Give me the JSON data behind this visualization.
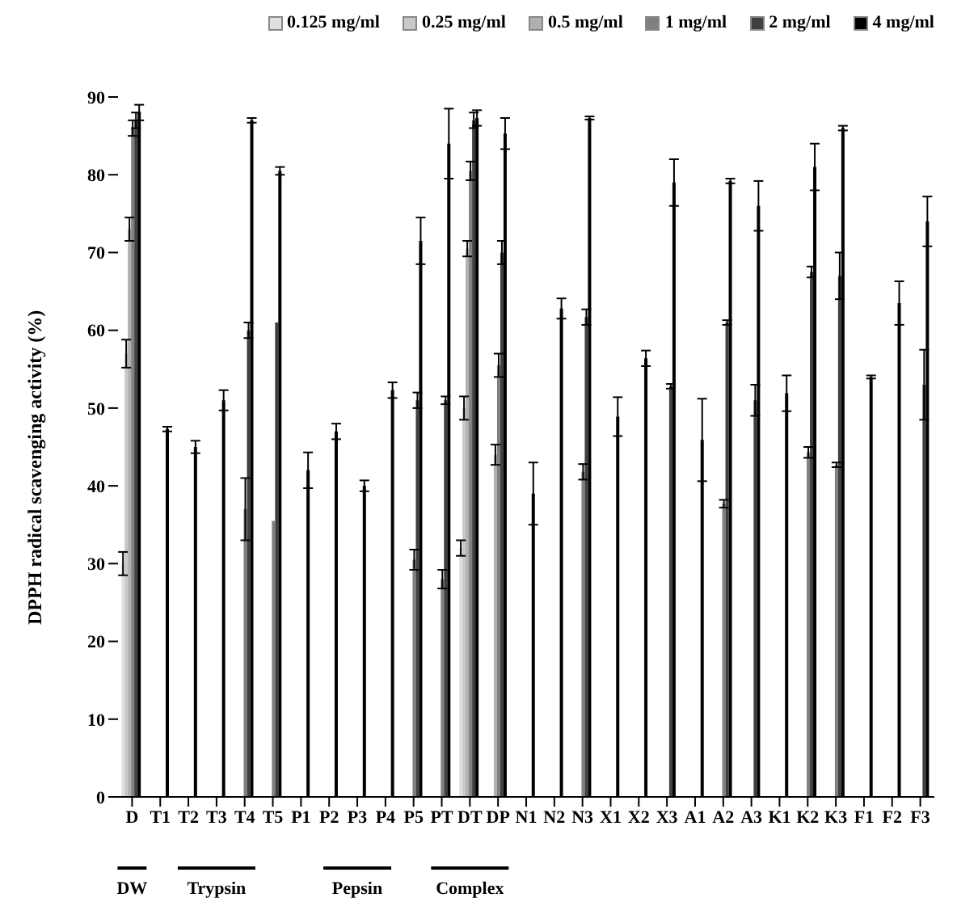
{
  "chart_data": {
    "type": "bar",
    "ylabel": "DPPH radical scavenging activity (%)",
    "categories": [
      "D",
      "T1",
      "T2",
      "T3",
      "T4",
      "T5",
      "P1",
      "P2",
      "P3",
      "P4",
      "P5",
      "PT",
      "DT",
      "DP",
      "N1",
      "N2",
      "N3",
      "X1",
      "X2",
      "X3",
      "A1",
      "A2",
      "A3",
      "K1",
      "K2",
      "K3",
      "F1",
      "F2",
      "F3"
    ],
    "series": [
      {
        "name": "0.125 mg/ml",
        "color": "#e0e0e0",
        "values": [
          30,
          null,
          null,
          null,
          null,
          null,
          null,
          null,
          null,
          null,
          null,
          null,
          32,
          null,
          null,
          null,
          null,
          null,
          null,
          null,
          null,
          null,
          null,
          null,
          null,
          null,
          null,
          null,
          null
        ],
        "errors": [
          1.5,
          null,
          null,
          null,
          null,
          null,
          null,
          null,
          null,
          null,
          null,
          null,
          1,
          null,
          null,
          null,
          null,
          null,
          null,
          null,
          null,
          null,
          null,
          null,
          null,
          null,
          null,
          null,
          null
        ]
      },
      {
        "name": "0.25 mg/ml",
        "color": "#c8c8c8",
        "values": [
          57,
          null,
          null,
          null,
          null,
          null,
          null,
          null,
          null,
          null,
          null,
          null,
          50,
          null,
          null,
          null,
          null,
          null,
          null,
          null,
          null,
          null,
          null,
          null,
          null,
          null,
          null,
          null,
          null
        ],
        "errors": [
          1.8,
          null,
          null,
          null,
          null,
          null,
          null,
          null,
          null,
          null,
          null,
          null,
          1.5,
          null,
          null,
          null,
          null,
          null,
          null,
          null,
          null,
          null,
          null,
          null,
          null,
          null,
          null,
          null,
          null
        ]
      },
      {
        "name": "0.5 mg/ml",
        "color": "#b0b0b0",
        "values": [
          73,
          null,
          null,
          null,
          null,
          null,
          null,
          null,
          null,
          null,
          null,
          null,
          70.5,
          44,
          null,
          null,
          null,
          null,
          null,
          null,
          null,
          null,
          null,
          null,
          null,
          null,
          null,
          null,
          null
        ],
        "errors": [
          1.5,
          null,
          null,
          null,
          null,
          null,
          null,
          null,
          null,
          null,
          null,
          null,
          1,
          1.3,
          null,
          null,
          null,
          null,
          null,
          null,
          null,
          null,
          null,
          null,
          null,
          null,
          null,
          null,
          null
        ]
      },
      {
        "name": "1 mg/ml",
        "color": "#808080",
        "values": [
          86,
          null,
          null,
          null,
          37,
          35.5,
          null,
          null,
          null,
          null,
          30.5,
          28,
          80.5,
          55.5,
          null,
          null,
          41.8,
          null,
          null,
          null,
          null,
          37.7,
          null,
          null,
          44.3,
          42.7,
          null,
          null,
          null
        ],
        "errors": [
          1,
          null,
          null,
          null,
          4,
          null,
          null,
          null,
          null,
          null,
          1.3,
          1.2,
          1.2,
          1.5,
          null,
          null,
          1,
          null,
          null,
          null,
          null,
          0.5,
          null,
          null,
          0.7,
          0.3,
          null,
          null,
          null
        ]
      },
      {
        "name": "2 mg/ml",
        "color": "#404040",
        "values": [
          87,
          null,
          null,
          null,
          60,
          61,
          null,
          null,
          null,
          null,
          51,
          51,
          87,
          70,
          null,
          null,
          61.7,
          null,
          null,
          52.8,
          null,
          61,
          51,
          null,
          67.5,
          67,
          null,
          null,
          53
        ],
        "errors": [
          1,
          null,
          null,
          null,
          1,
          null,
          null,
          null,
          null,
          null,
          1,
          0.5,
          1,
          1.5,
          null,
          null,
          1,
          null,
          null,
          0.3,
          null,
          0.3,
          2,
          null,
          0.7,
          3,
          null,
          null,
          4.5
        ]
      },
      {
        "name": "4 mg/ml",
        "color": "#000000",
        "values": [
          88,
          47.3,
          45,
          51,
          87,
          80.5,
          42,
          47,
          40,
          52.3,
          71.5,
          84,
          87.3,
          85.3,
          39,
          62.8,
          87.3,
          48.9,
          56.4,
          79,
          45.9,
          79.2,
          76,
          51.9,
          81,
          86,
          54,
          63.5,
          74
        ],
        "errors": [
          1,
          0.3,
          0.8,
          1.3,
          0.3,
          0.5,
          2.3,
          1,
          0.7,
          1,
          3,
          4.5,
          1,
          2,
          4,
          1.3,
          0.2,
          2.5,
          1,
          3,
          5.3,
          0.3,
          3.2,
          2.3,
          3,
          0.3,
          0.2,
          2.8,
          3.2
        ]
      }
    ],
    "ylim": [
      0,
      90
    ],
    "yticks": [
      0,
      10,
      20,
      30,
      40,
      50,
      60,
      70,
      80,
      90
    ],
    "grid": false,
    "legend": "top right",
    "annotations": [
      "DW",
      "Trypsin",
      "Pepsin",
      "Complex"
    ]
  }
}
